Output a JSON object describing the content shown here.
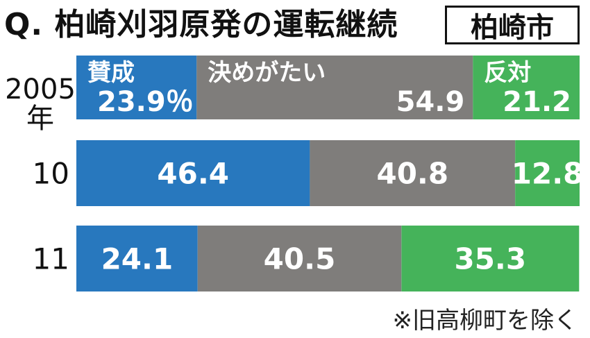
{
  "title": "Q. 柏崎刈羽原発の運転継続",
  "region": "柏崎市",
  "note": "※旧高柳町を除く",
  "colors": {
    "support": "#2878be",
    "undecided": "#7f7d7b",
    "oppose": "#45b35a",
    "text_on_bar": "#ffffff"
  },
  "chart_data": {
    "type": "bar",
    "orientation": "horizontal-stacked-100",
    "title": "Q. 柏崎刈羽原発の運転継続",
    "categories": [
      "2005年",
      "10",
      "11"
    ],
    "series": [
      {
        "name": "賛成",
        "values": [
          23.9,
          46.4,
          24.1
        ],
        "labels": [
          "23.9％",
          "46.4",
          "24.1"
        ]
      },
      {
        "name": "決めがたい",
        "values": [
          54.9,
          40.8,
          40.5
        ],
        "labels": [
          "54.9",
          "40.8",
          "40.5"
        ]
      },
      {
        "name": "反対",
        "values": [
          21.2,
          12.8,
          35.3
        ],
        "labels": [
          "21.2",
          "12.8",
          "35.3"
        ]
      }
    ],
    "unit": "％",
    "xlim": [
      0,
      100
    ]
  }
}
